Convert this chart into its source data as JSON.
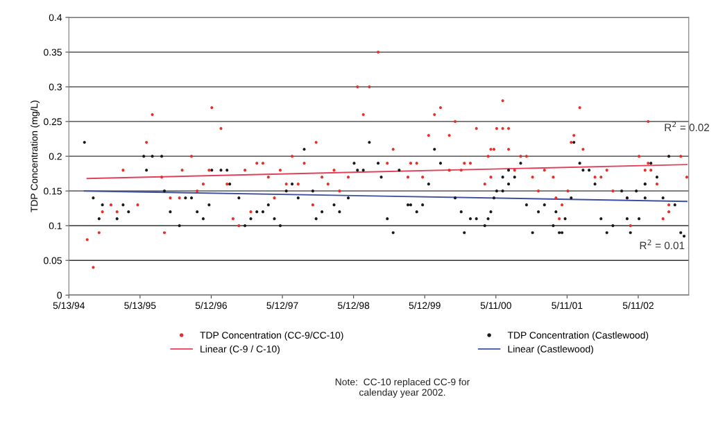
{
  "chart_data": {
    "type": "scatter",
    "ylabel": "TDP Concentration (mg/L)",
    "xlim": [
      "1994-05-13",
      "2003-01-25"
    ],
    "xticks": [
      {
        "value": "1994-05-13",
        "label": "5/13/94"
      },
      {
        "value": "1995-05-13",
        "label": "5/13/95"
      },
      {
        "value": "1996-05-12",
        "label": "5/12/96"
      },
      {
        "value": "1997-05-12",
        "label": "5/12/97"
      },
      {
        "value": "1998-05-12",
        "label": "5/12/98"
      },
      {
        "value": "1999-05-12",
        "label": "5/12/99"
      },
      {
        "value": "2000-05-11",
        "label": "5/11/00"
      },
      {
        "value": "2001-05-11",
        "label": "5/11/01"
      },
      {
        "value": "2002-05-11",
        "label": "5/11/02"
      }
    ],
    "ylim": [
      0,
      0.4
    ],
    "yticks": [
      0,
      0.05,
      0.1,
      0.15,
      0.2,
      0.25,
      0.3,
      0.35,
      0.4
    ],
    "grid": "y",
    "legend": "bottom",
    "series": [
      {
        "name": "TDP Concentration (CC-9/CC-10)",
        "marker": "circle",
        "color": "#e8302a",
        "x": [
          "1994-08-15",
          "1994-09-15",
          "1994-10-15",
          "1994-11-01",
          "1994-12-15",
          "1995-01-15",
          "1995-02-15",
          "1995-05-01",
          "1995-06-15",
          "1995-07-15",
          "1995-09-01",
          "1995-09-15",
          "1995-10-15",
          "1995-12-01",
          "1995-12-15",
          "1996-02-01",
          "1996-03-01",
          "1996-04-01",
          "1996-05-01",
          "1996-05-15",
          "1996-07-01",
          "1996-08-01",
          "1996-09-01",
          "1996-10-01",
          "1996-11-01",
          "1996-12-01",
          "1997-01-01",
          "1997-02-01",
          "1997-03-01",
          "1997-04-01",
          "1997-05-01",
          "1997-06-01",
          "1997-07-01",
          "1997-08-01",
          "1997-09-01",
          "1997-10-15",
          "1997-11-01",
          "1997-12-01",
          "1998-01-01",
          "1998-02-01",
          "1998-03-01",
          "1998-04-15",
          "1998-06-01",
          "1998-07-01",
          "1998-08-01",
          "1998-09-15",
          "1998-11-01",
          "1998-12-01",
          "1999-02-15",
          "1999-03-01",
          "1999-04-01",
          "1999-05-01",
          "1999-06-01",
          "1999-07-01",
          "1999-08-01",
          "1999-09-15",
          "1999-09-15",
          "1999-10-15",
          "1999-11-15",
          "1999-12-01",
          "2000-01-01",
          "2000-02-01",
          "2000-03-15",
          "2000-04-01",
          "2000-04-15",
          "2000-04-15",
          "2000-05-01",
          "2000-05-15",
          "2000-06-15",
          "2000-06-15",
          "2000-07-15",
          "2000-07-15",
          "2000-08-15",
          "2000-09-15",
          "2000-10-15",
          "2000-11-15",
          "2000-12-15",
          "2001-01-15",
          "2001-03-01",
          "2001-03-15",
          "2001-04-01",
          "2001-04-15",
          "2001-05-15",
          "2001-06-01",
          "2001-06-15",
          "2001-07-15",
          "2001-08-01",
          "2001-10-01",
          "2001-11-01",
          "2001-12-01",
          "2002-01-01",
          "2002-03-15",
          "2002-04-01",
          "2002-05-15",
          "2002-06-15",
          "2002-06-15",
          "2002-07-01",
          "2002-07-01",
          "2002-07-15",
          "2002-08-15",
          "2002-09-15",
          "2002-10-15",
          "2002-10-15",
          "2002-12-15",
          "2003-01-15"
        ],
        "values": [
          0.08,
          0.04,
          0.09,
          0.12,
          0.13,
          0.12,
          0.18,
          0.13,
          0.22,
          0.26,
          0.17,
          0.09,
          0.14,
          0.14,
          0.18,
          0.2,
          0.15,
          0.16,
          0.18,
          0.27,
          0.24,
          0.16,
          0.11,
          0.1,
          0.18,
          0.12,
          0.19,
          0.19,
          0.17,
          0.14,
          0.18,
          0.16,
          0.2,
          0.16,
          0.19,
          0.13,
          0.22,
          0.17,
          0.16,
          0.18,
          0.15,
          0.17,
          0.3,
          0.26,
          0.3,
          0.35,
          0.19,
          0.21,
          0.17,
          0.19,
          0.19,
          0.17,
          0.23,
          0.26,
          0.27,
          0.23,
          0.18,
          0.25,
          0.18,
          0.19,
          0.19,
          0.24,
          0.16,
          0.2,
          0.17,
          0.21,
          0.21,
          0.24,
          0.24,
          0.28,
          0.24,
          0.21,
          0.18,
          0.2,
          0.2,
          0.17,
          0.15,
          0.18,
          0.17,
          0.14,
          0.11,
          0.13,
          0.15,
          0.22,
          0.23,
          0.27,
          0.21,
          0.17,
          0.17,
          0.18,
          0.15,
          0.14,
          0.1,
          0.2,
          0.18,
          0.16,
          0.25,
          0.19,
          0.18,
          0.16,
          0.11,
          0.12,
          0.13,
          0.2,
          0.17
        ]
      },
      {
        "name": "Linear (C-9 / C-10)",
        "type": "line",
        "color": "#e0405a",
        "x": [
          "1994-08-15",
          "2003-01-15"
        ],
        "values": [
          0.168,
          0.188
        ]
      },
      {
        "name": "TDP Concentration (Castlewood)",
        "marker": "circle",
        "color": "#1a1a1a",
        "x": [
          "1994-08-01",
          "1994-09-15",
          "1994-10-15",
          "1994-11-01",
          "1995-01-15",
          "1995-02-15",
          "1995-03-15",
          "1995-06-01",
          "1995-06-15",
          "1995-07-15",
          "1995-09-01",
          "1995-09-15",
          "1995-10-15",
          "1995-12-01",
          "1996-01-01",
          "1996-02-01",
          "1996-03-01",
          "1996-04-01",
          "1996-05-01",
          "1996-05-15",
          "1996-07-01",
          "1996-08-01",
          "1996-08-15",
          "1996-10-01",
          "1996-11-01",
          "1996-12-01",
          "1997-01-01",
          "1997-02-01",
          "1997-03-01",
          "1997-04-01",
          "1997-05-01",
          "1997-06-01",
          "1997-07-01",
          "1997-08-01",
          "1997-09-01",
          "1997-10-15",
          "1997-11-01",
          "1997-12-01",
          "1998-02-01",
          "1998-03-01",
          "1998-04-15",
          "1998-05-15",
          "1998-06-01",
          "1998-07-01",
          "1998-08-01",
          "1998-09-15",
          "1998-10-01",
          "1998-11-01",
          "1998-12-01",
          "1999-01-01",
          "1999-02-15",
          "1999-03-01",
          "1999-04-01",
          "1999-05-01",
          "1999-06-01",
          "1999-07-01",
          "1999-08-01",
          "1999-10-15",
          "1999-11-15",
          "1999-12-01",
          "2000-01-01",
          "2000-02-01",
          "2000-03-15",
          "2000-04-01",
          "2000-04-15",
          "2000-05-01",
          "2000-05-15",
          "2000-06-15",
          "2000-06-15",
          "2000-07-15",
          "2000-07-15",
          "2000-08-15",
          "2000-09-15",
          "2000-10-15",
          "2000-11-15",
          "2000-12-15",
          "2001-01-15",
          "2001-03-01",
          "2001-03-15",
          "2001-04-01",
          "2001-04-15",
          "2001-05-01",
          "2001-06-01",
          "2001-06-15",
          "2001-07-15",
          "2001-08-01",
          "2001-09-01",
          "2001-10-01",
          "2001-11-01",
          "2001-12-01",
          "2002-01-01",
          "2002-02-15",
          "2002-03-15",
          "2002-03-15",
          "2002-04-01",
          "2002-05-01",
          "2002-05-15",
          "2002-06-15",
          "2002-06-15",
          "2002-07-15",
          "2002-08-15",
          "2002-09-15",
          "2002-10-15",
          "2002-11-15",
          "2002-12-15",
          "2003-01-01"
        ],
        "values": [
          0.22,
          0.14,
          0.11,
          0.13,
          0.11,
          0.13,
          0.12,
          0.2,
          0.18,
          0.2,
          0.2,
          0.15,
          0.12,
          0.1,
          0.14,
          0.14,
          0.12,
          0.11,
          0.13,
          0.18,
          0.18,
          0.18,
          0.16,
          0.14,
          0.1,
          0.11,
          0.12,
          0.12,
          0.13,
          0.11,
          0.1,
          0.15,
          0.16,
          0.14,
          0.21,
          0.15,
          0.11,
          0.12,
          0.13,
          0.12,
          0.14,
          0.19,
          0.18,
          0.18,
          0.22,
          0.19,
          0.17,
          0.11,
          0.09,
          0.18,
          0.13,
          0.13,
          0.12,
          0.13,
          0.16,
          0.21,
          0.19,
          0.14,
          0.12,
          0.09,
          0.11,
          0.11,
          0.1,
          0.11,
          0.12,
          0.14,
          0.15,
          0.15,
          0.17,
          0.18,
          0.16,
          0.17,
          0.19,
          0.13,
          0.09,
          0.12,
          0.13,
          0.1,
          0.12,
          0.09,
          0.09,
          0.11,
          0.14,
          0.22,
          0.19,
          0.18,
          0.18,
          0.16,
          0.11,
          0.09,
          0.1,
          0.15,
          0.14,
          0.11,
          0.09,
          0.15,
          0.11,
          0.14,
          0.16,
          0.19,
          0.17,
          0.14,
          0.2,
          0.13,
          0.09,
          0.085
        ]
      },
      {
        "name": "Linear (Castlewood)",
        "type": "line",
        "color": "#3a4fa0",
        "x": [
          "1994-08-01",
          "2003-01-15"
        ],
        "values": [
          0.15,
          0.135
        ]
      }
    ],
    "annotations": [
      "R$^{2}$ = 0.02",
      "R$^{2}$ = 0.01",
      "Note:  CC-10 replaced CC-9 for\ncalenday year 2002."
    ]
  }
}
